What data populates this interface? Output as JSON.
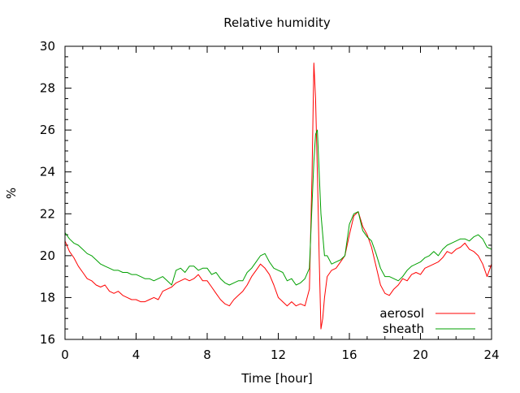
{
  "chart_data": {
    "type": "line",
    "title": "Relative humidity",
    "xlabel": "Time [hour]",
    "ylabel": "%",
    "xlim": [
      0,
      24
    ],
    "ylim": [
      16,
      30
    ],
    "xticks": [
      0,
      4,
      8,
      12,
      16,
      20,
      24
    ],
    "yticks": [
      16,
      18,
      20,
      22,
      24,
      26,
      28,
      30
    ],
    "grid": false,
    "legend_position": "bottom-right",
    "series": [
      {
        "name": "aerosol",
        "color": "#ff0000",
        "x": [
          0,
          0.25,
          0.5,
          0.75,
          1,
          1.25,
          1.5,
          1.75,
          2,
          2.25,
          2.5,
          2.75,
          3,
          3.25,
          3.5,
          3.75,
          4,
          4.25,
          4.5,
          4.75,
          5,
          5.25,
          5.5,
          5.75,
          6,
          6.25,
          6.5,
          6.75,
          7,
          7.25,
          7.5,
          7.75,
          8,
          8.25,
          8.5,
          8.75,
          9,
          9.25,
          9.5,
          9.75,
          10,
          10.25,
          10.5,
          10.75,
          11,
          11.25,
          11.5,
          11.75,
          12,
          12.25,
          12.5,
          12.75,
          13,
          13.25,
          13.5,
          13.75,
          13.9,
          14,
          14.1,
          14.2,
          14.3,
          14.4,
          14.5,
          14.6,
          14.75,
          15,
          15.25,
          15.5,
          15.75,
          16,
          16.25,
          16.5,
          16.75,
          17,
          17.25,
          17.5,
          17.75,
          18,
          18.25,
          18.5,
          18.75,
          19,
          19.25,
          19.5,
          19.75,
          20,
          20.25,
          20.5,
          20.75,
          21,
          21.25,
          21.5,
          21.75,
          22,
          22.25,
          22.5,
          22.75,
          23,
          23.25,
          23.5,
          23.75,
          24
        ],
        "values": [
          20.7,
          20.2,
          19.9,
          19.5,
          19.2,
          18.9,
          18.8,
          18.6,
          18.5,
          18.6,
          18.3,
          18.2,
          18.3,
          18.1,
          18.0,
          17.9,
          17.9,
          17.8,
          17.8,
          17.9,
          18.0,
          17.9,
          18.3,
          18.4,
          18.5,
          18.7,
          18.8,
          18.9,
          18.8,
          18.9,
          19.1,
          18.8,
          18.8,
          18.5,
          18.2,
          17.9,
          17.7,
          17.6,
          17.9,
          18.1,
          18.3,
          18.6,
          19.0,
          19.3,
          19.6,
          19.4,
          19.1,
          18.6,
          18.0,
          17.8,
          17.6,
          17.8,
          17.6,
          17.7,
          17.6,
          18.4,
          24.0,
          29.2,
          27.5,
          24.0,
          20.0,
          16.5,
          17.0,
          18.0,
          19.0,
          19.3,
          19.4,
          19.7,
          20.0,
          21.0,
          21.9,
          22.1,
          21.4,
          21.0,
          20.4,
          19.5,
          18.6,
          18.2,
          18.1,
          18.4,
          18.6,
          18.9,
          18.8,
          19.1,
          19.2,
          19.1,
          19.4,
          19.5,
          19.6,
          19.7,
          19.9,
          20.2,
          20.1,
          20.3,
          20.4,
          20.6,
          20.3,
          20.2,
          20.0,
          19.6,
          19.0,
          19.6
        ]
      },
      {
        "name": "sheath",
        "color": "#00a000",
        "x": [
          0,
          0.25,
          0.5,
          0.75,
          1,
          1.25,
          1.5,
          1.75,
          2,
          2.25,
          2.5,
          2.75,
          3,
          3.25,
          3.5,
          3.75,
          4,
          4.25,
          4.5,
          4.75,
          5,
          5.25,
          5.5,
          5.75,
          6,
          6.25,
          6.5,
          6.75,
          7,
          7.25,
          7.5,
          7.75,
          8,
          8.25,
          8.5,
          8.75,
          9,
          9.25,
          9.5,
          9.75,
          10,
          10.25,
          10.5,
          10.75,
          11,
          11.25,
          11.5,
          11.75,
          12,
          12.25,
          12.5,
          12.75,
          13,
          13.25,
          13.5,
          13.75,
          13.9,
          14,
          14.1,
          14.2,
          14.3,
          14.4,
          14.5,
          14.6,
          14.75,
          15,
          15.25,
          15.5,
          15.75,
          16,
          16.25,
          16.5,
          16.75,
          17,
          17.25,
          17.5,
          17.75,
          18,
          18.25,
          18.5,
          18.75,
          19,
          19.25,
          19.5,
          19.75,
          20,
          20.25,
          20.5,
          20.75,
          21,
          21.25,
          21.5,
          21.75,
          22,
          22.25,
          22.5,
          22.75,
          23,
          23.25,
          23.5,
          23.75,
          24
        ],
        "values": [
          21.1,
          20.8,
          20.6,
          20.5,
          20.3,
          20.1,
          20.0,
          19.8,
          19.6,
          19.5,
          19.4,
          19.3,
          19.3,
          19.2,
          19.2,
          19.1,
          19.1,
          19.0,
          18.9,
          18.9,
          18.8,
          18.9,
          19.0,
          18.8,
          18.6,
          19.3,
          19.4,
          19.2,
          19.5,
          19.5,
          19.3,
          19.4,
          19.4,
          19.1,
          19.2,
          18.9,
          18.7,
          18.6,
          18.7,
          18.8,
          18.8,
          19.2,
          19.4,
          19.7,
          20.0,
          20.1,
          19.7,
          19.4,
          19.3,
          19.2,
          18.8,
          18.9,
          18.6,
          18.7,
          18.9,
          19.4,
          22.5,
          24.5,
          25.8,
          26.0,
          24.0,
          22.0,
          21.0,
          20.0,
          20.0,
          19.6,
          19.7,
          19.8,
          20.0,
          21.5,
          22.0,
          22.1,
          21.2,
          20.9,
          20.7,
          20.1,
          19.4,
          19.0,
          19.0,
          18.9,
          18.8,
          19.0,
          19.3,
          19.5,
          19.6,
          19.7,
          19.9,
          20.0,
          20.2,
          20.0,
          20.3,
          20.5,
          20.6,
          20.7,
          20.8,
          20.8,
          20.7,
          20.9,
          21.0,
          20.8,
          20.4,
          20.3
        ]
      }
    ]
  }
}
